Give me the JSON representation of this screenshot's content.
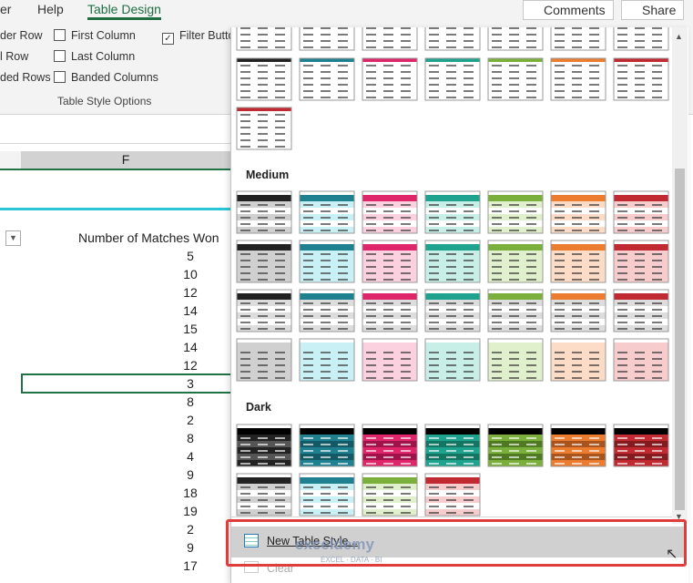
{
  "ribbon": {
    "tabs": [
      "er",
      "Help",
      "Table Design"
    ],
    "buttons": [
      "Comments",
      "Share"
    ],
    "options": [
      "der Row",
      "l Row",
      "ded Rows",
      "First Column",
      "Last Column",
      "Banded Columns",
      "Filter Butto"
    ],
    "group_label": "Table Style Options"
  },
  "sheet": {
    "column_header": "F",
    "column_title": "Number of Matches Won",
    "values": [
      5,
      10,
      12,
      14,
      15,
      14,
      12,
      3,
      8,
      2,
      8,
      4,
      9,
      18,
      19,
      2,
      9,
      17
    ]
  },
  "gallery": {
    "sections": [
      "Medium",
      "Dark"
    ],
    "menu": [
      "New Table Style...",
      "Clear"
    ]
  },
  "watermark": {
    "name": "exceldemy",
    "tagline": "EXCEL · DATA · BI"
  }
}
